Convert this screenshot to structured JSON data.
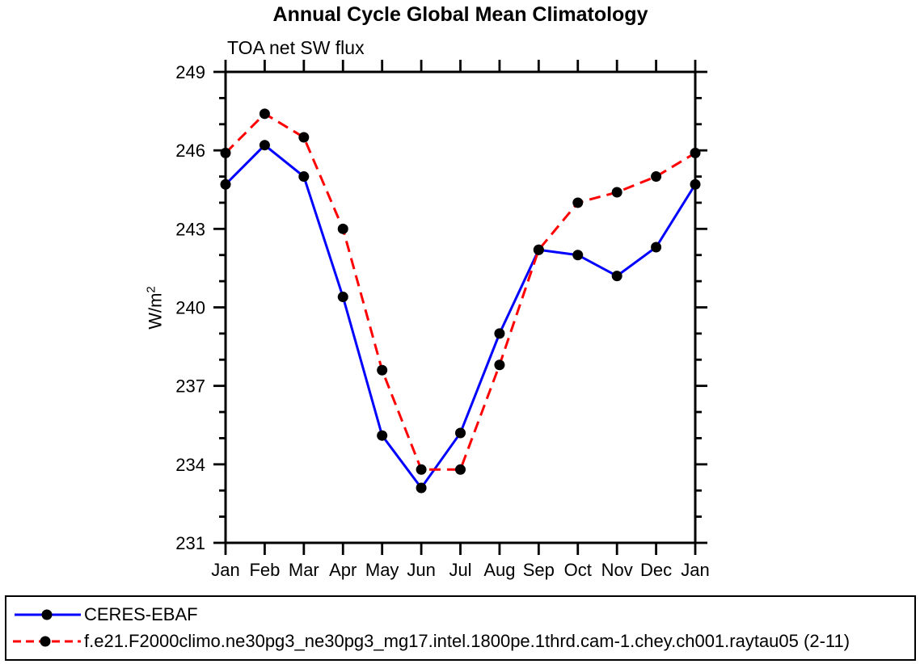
{
  "chart": {
    "title": "Annual Cycle Global Mean Climatology",
    "subtitle": "TOA net SW flux",
    "ylabel_base": "W/m",
    "ylabel_exp": "2"
  },
  "chart_data": {
    "type": "line",
    "title": "Annual Cycle Global Mean Climatology",
    "subtitle": "TOA net SW flux",
    "ylabel": "W/m2",
    "xlabel": "",
    "categories": [
      "Jan",
      "Feb",
      "Mar",
      "Apr",
      "May",
      "Jun",
      "Jul",
      "Aug",
      "Sep",
      "Oct",
      "Nov",
      "Dec",
      "Jan"
    ],
    "ylim": [
      231,
      249
    ],
    "yticks_major": [
      231,
      234,
      237,
      240,
      243,
      246,
      249
    ],
    "ytick_minor_step": 1,
    "grid": false,
    "frame": "box-with-outward-ticks",
    "legend_position": "bottom-outside-box",
    "marker": "filled-circle",
    "marker_color": "#000000",
    "series": [
      {
        "name": "CERES-EBAF",
        "color": "#0000ff",
        "line_style": "solid",
        "values": [
          244.7,
          246.2,
          245.0,
          240.4,
          235.1,
          233.1,
          235.2,
          239.0,
          242.2,
          242.0,
          241.2,
          242.3,
          244.7
        ]
      },
      {
        "name": "f.e21.F2000climo.ne30pg3_ne30pg3_mg17.intel.1800pe.1thrd.cam-1.chey.ch001.raytau05 (2-11)",
        "color": "#ff0000",
        "line_style": "dashed",
        "values": [
          245.9,
          247.4,
          246.5,
          243.0,
          237.6,
          233.8,
          233.8,
          237.8,
          242.2,
          244.0,
          244.4,
          245.0,
          245.9
        ]
      }
    ]
  }
}
